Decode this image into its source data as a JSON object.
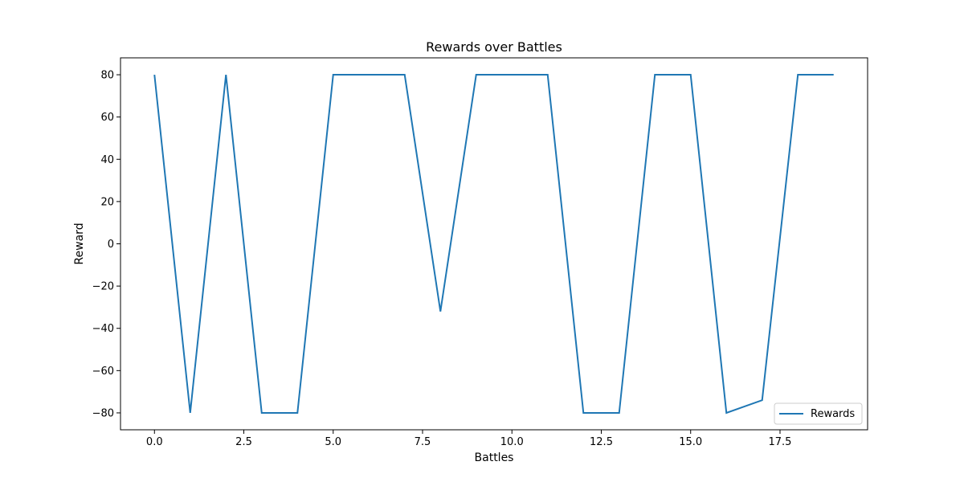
{
  "chart_data": {
    "type": "line",
    "title": "Rewards over Battles",
    "xlabel": "Battles",
    "ylabel": "Reward",
    "xlim": [
      -0.95,
      19.95
    ],
    "ylim": [
      -88,
      88
    ],
    "xticks": [
      0.0,
      2.5,
      5.0,
      7.5,
      10.0,
      12.5,
      15.0,
      17.5
    ],
    "xtick_labels": [
      "0.0",
      "2.5",
      "5.0",
      "7.5",
      "10.0",
      "12.5",
      "15.0",
      "17.5"
    ],
    "yticks": [
      -80,
      -60,
      -40,
      -20,
      0,
      20,
      40,
      60,
      80
    ],
    "ytick_labels": [
      "−80",
      "−60",
      "−40",
      "−20",
      "0",
      "20",
      "40",
      "60",
      "80"
    ],
    "grid": false,
    "legend_position": "lower-right",
    "series": [
      {
        "name": "Rewards",
        "color": "#1f77b4",
        "x": [
          0,
          1,
          2,
          3,
          4,
          5,
          6,
          7,
          8,
          9,
          10,
          11,
          12,
          13,
          14,
          15,
          16,
          17,
          18,
          19
        ],
        "values": [
          80,
          -80,
          80,
          -80,
          -80,
          80,
          80,
          80,
          -32,
          80,
          80,
          80,
          -80,
          -80,
          80,
          80,
          -80,
          -74,
          80,
          80
        ]
      }
    ]
  }
}
